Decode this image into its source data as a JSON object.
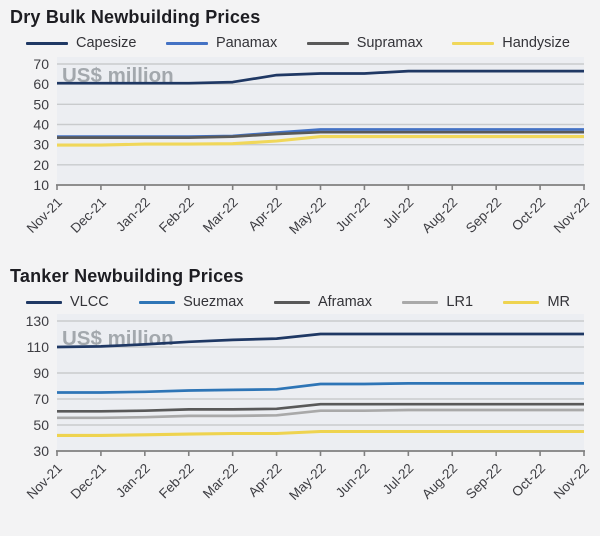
{
  "colors": {
    "page_background": "#f3f3f4",
    "plot_background": "#eceef2",
    "gridline": "#c9cbcd",
    "axis_line": "#808080",
    "tick_label": "#3d3d42",
    "watermark": "#a3a8ad",
    "navy": "#1f3864",
    "blue": "#2e75b6",
    "dark_gray": "#595959",
    "light_gray": "#a9a9a9",
    "yellow": "#eed34f"
  },
  "chart_data": [
    {
      "type": "line",
      "title": "Dry Bulk Newbuilding Prices",
      "unit_watermark": "US$ million",
      "legend_position": "top",
      "grid": true,
      "categories": [
        "Nov-21",
        "Dec-21",
        "Jan-22",
        "Feb-22",
        "Mar-22",
        "Apr-22",
        "May-22",
        "Jun-22",
        "Jul-22",
        "Aug-22",
        "Sep-22",
        "Oct-22",
        "Nov-22"
      ],
      "ylim": [
        10,
        70
      ],
      "yticks": [
        10,
        20,
        30,
        40,
        50,
        60,
        70
      ],
      "series": [
        {
          "name": "Capesize",
          "color": "#1f3864",
          "values": [
            60.5,
            60.5,
            60.5,
            60.5,
            61,
            64.5,
            65.3,
            65.3,
            66.5,
            66.5,
            66.5,
            66.5,
            66.5
          ]
        },
        {
          "name": "Panamax",
          "color": "#4472c4",
          "values": [
            34,
            34,
            34,
            34,
            34.3,
            36,
            37.5,
            37.5,
            37.5,
            37.5,
            37.5,
            37.5,
            37.5
          ]
        },
        {
          "name": "Supramax",
          "color": "#595959",
          "values": [
            33.5,
            33.5,
            33.5,
            33.5,
            34,
            35.3,
            36.2,
            36.2,
            36.2,
            36.2,
            36.2,
            36.2,
            36.2
          ]
        },
        {
          "name": "Handysize",
          "color": "#f0d75a",
          "values": [
            29.8,
            29.8,
            30.3,
            30.3,
            30.5,
            31.8,
            34,
            34,
            34,
            34,
            34,
            34,
            34
          ]
        }
      ]
    },
    {
      "type": "line",
      "title": "Tanker Newbuilding Prices",
      "unit_watermark": "US$ million",
      "legend_position": "top",
      "grid": true,
      "categories": [
        "Nov-21",
        "Dec-21",
        "Jan-22",
        "Feb-22",
        "Mar-22",
        "Apr-22",
        "May-22",
        "Jun-22",
        "Jul-22",
        "Aug-22",
        "Sep-22",
        "Oct-22",
        "Nov-22"
      ],
      "ylim": [
        30,
        130
      ],
      "yticks": [
        30,
        50,
        70,
        90,
        110,
        130
      ],
      "series": [
        {
          "name": "VLCC",
          "color": "#1f3864",
          "values": [
            110,
            110.5,
            112,
            114,
            115.5,
            116.5,
            120,
            120,
            120,
            120,
            120,
            120,
            120
          ]
        },
        {
          "name": "Suezmax",
          "color": "#2e75b6",
          "values": [
            75,
            75,
            75.5,
            76.5,
            77,
            77.5,
            81.5,
            81.5,
            82,
            82,
            82,
            82,
            82
          ]
        },
        {
          "name": "Aframax",
          "color": "#595959",
          "values": [
            60.5,
            60.5,
            61,
            62,
            62,
            62.5,
            66,
            66,
            66,
            66,
            66,
            66,
            66
          ]
        },
        {
          "name": "LR1",
          "color": "#a9a9a9",
          "values": [
            55.5,
            55.5,
            56,
            57,
            57,
            57.5,
            61,
            61,
            61.5,
            61.5,
            61.5,
            61.5,
            61.5
          ]
        },
        {
          "name": "MR",
          "color": "#eed34f",
          "values": [
            42,
            42,
            42.5,
            43,
            43.5,
            43.5,
            45,
            45,
            45,
            45,
            45,
            45,
            45
          ]
        }
      ]
    }
  ]
}
